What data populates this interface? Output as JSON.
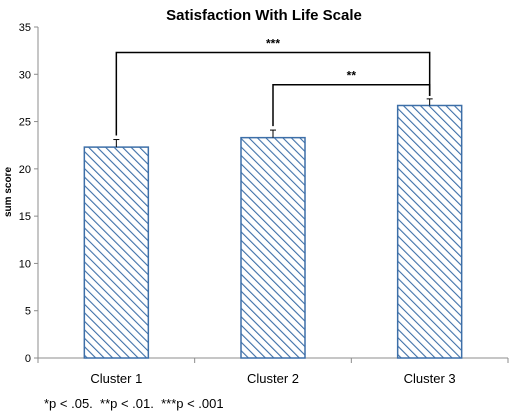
{
  "chart_data": {
    "type": "bar",
    "title": "Satisfaction With Life Scale",
    "ylabel": "sum score",
    "xlabel": "",
    "categories": [
      "Cluster 1",
      "Cluster 2",
      "Cluster 3"
    ],
    "values": [
      22.3,
      23.3,
      26.7
    ],
    "errors": [
      0.8,
      0.8,
      0.7
    ],
    "ylim": [
      0,
      35
    ],
    "yticks": [
      0,
      5,
      10,
      15,
      20,
      25,
      30,
      35
    ],
    "grid": false,
    "bar_fill": "diagonal-hatch",
    "bar_color": "#3d6fa8",
    "significance": [
      {
        "from": 0,
        "to": 2,
        "label": "***",
        "y": 32.3
      },
      {
        "from": 1,
        "to": 2,
        "label": "**",
        "y": 28.9
      }
    ]
  },
  "footnote": "*p < .05.  **p < .01.  ***p < .001"
}
